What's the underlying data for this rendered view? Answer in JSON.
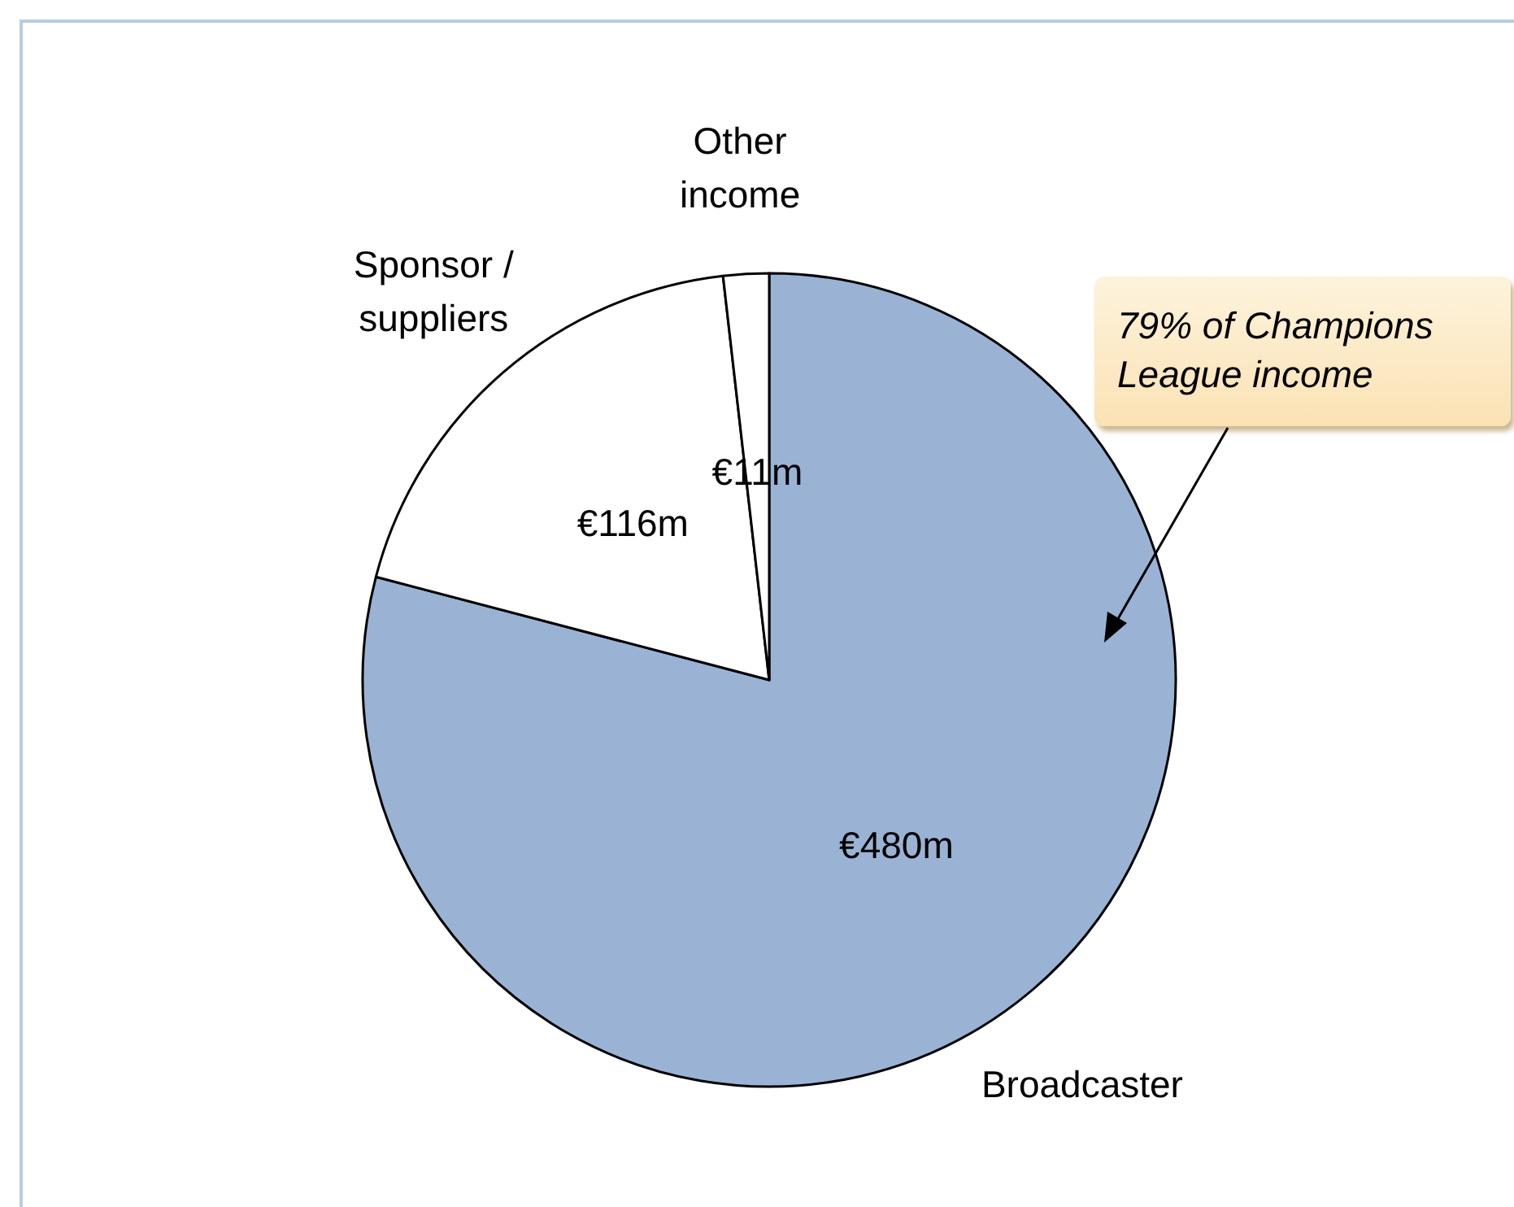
{
  "chart_data": {
    "type": "pie",
    "categories": [
      "Broadcaster",
      "Sponsor / suppliers",
      "Other income"
    ],
    "values": [
      480,
      116,
      11
    ],
    "value_labels": [
      "€480m",
      "€116m",
      "€11m"
    ],
    "colors": [
      "#9ab3d5",
      "#ffffff",
      "#ffffff"
    ],
    "legend": false,
    "annotations": [
      "79% of Champions League income"
    ]
  }
}
